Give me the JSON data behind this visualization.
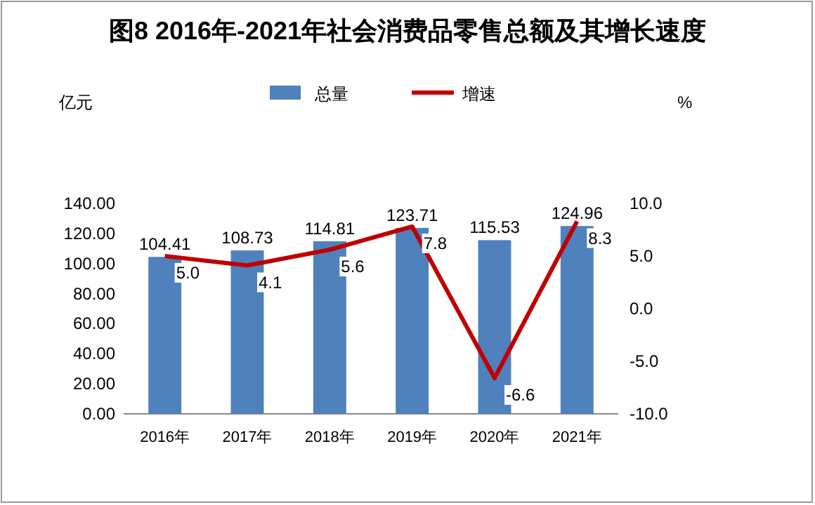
{
  "chart_data": {
    "type": "bar",
    "title": "图8  2016年-2021年社会消费品零售总额及其增长速度",
    "ylabel": "亿元",
    "y2label": "%",
    "categories": [
      "2016年",
      "2017年",
      "2018年",
      "2019年",
      "2020年",
      "2021年"
    ],
    "series": [
      {
        "name": "总量",
        "color": "#4f81bd",
        "values": [
          104.41,
          108.73,
          114.81,
          123.71,
          115.53,
          124.96
        ],
        "value_labels": [
          "104.41",
          "108.73",
          "114.81",
          "123.71",
          "115.53",
          "124.96"
        ]
      },
      {
        "name": "增速",
        "type": "line",
        "axis": "y2",
        "color": "#c00000",
        "values": [
          5.0,
          4.1,
          5.6,
          7.8,
          -6.6,
          8.3
        ],
        "value_labels": [
          "5.0",
          "4.1",
          "5.6",
          "7.8",
          "-6.6",
          "8.3"
        ]
      }
    ],
    "ylim": [
      0,
      140
    ],
    "yticks": [
      {
        "value": 0,
        "label": "0.00"
      },
      {
        "value": 20,
        "label": "20.00"
      },
      {
        "value": 40,
        "label": "40.00"
      },
      {
        "value": 60,
        "label": "60.00"
      },
      {
        "value": 80,
        "label": "80.00"
      },
      {
        "value": 100,
        "label": "100.00"
      },
      {
        "value": 120,
        "label": "120.00"
      },
      {
        "value": 140,
        "label": "140.00"
      }
    ],
    "y2lim": [
      -10,
      10
    ],
    "y2ticks": [
      {
        "value": -10,
        "label": "-10.0"
      },
      {
        "value": -5,
        "label": "-5.0"
      },
      {
        "value": 0,
        "label": "0.0"
      },
      {
        "value": 5,
        "label": "5.0"
      },
      {
        "value": 10,
        "label": "10.0"
      }
    ],
    "legend": "top",
    "grid": false,
    "line_style": "solid"
  }
}
